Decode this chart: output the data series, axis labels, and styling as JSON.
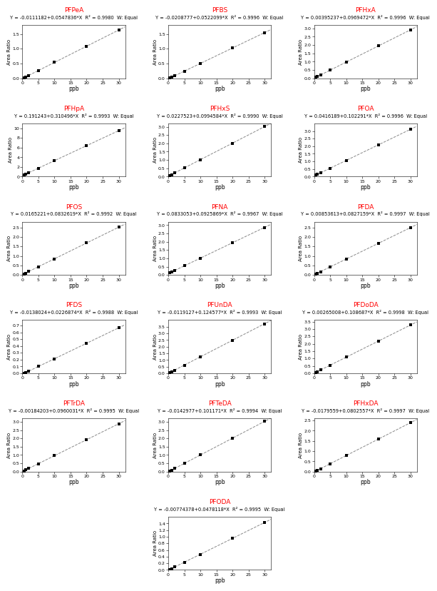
{
  "compounds": [
    {
      "name": "PFPeA",
      "eq_line": "Y = -0.0111182+0.0547836*X  R² = 0.9980  W: Equal",
      "intercept": -0.0111182,
      "slope": 0.0547836,
      "ymax": 1.8,
      "yticks": [
        0.0,
        0.5,
        1.0,
        1.5
      ]
    },
    {
      "name": "PFBS",
      "eq_line": "Y = -0.0208777+0.0522099*X  R² = 0.9996  W: Equal",
      "intercept": -0.0208777,
      "slope": 0.0522099,
      "ymax": 1.8,
      "yticks": [
        0.0,
        0.5,
        1.0,
        1.5
      ]
    },
    {
      "name": "PFHxA",
      "eq_line": "Y = 0.00395237+0.0969472*X  R² = 0.9996  W: Equal",
      "intercept": 0.00395237,
      "slope": 0.0969472,
      "ymax": 3.2,
      "yticks": [
        0.0,
        0.5,
        1.0,
        1.5,
        2.0,
        2.5,
        3.0
      ]
    },
    {
      "name": "PFHpA",
      "eq_line": "Y = 0.191243+0.310496*X  R² = 0.9993  W: Equal",
      "intercept": 0.191243,
      "slope": 0.310496,
      "ymax": 11.0,
      "yticks": [
        0,
        2,
        4,
        6,
        8,
        10
      ]
    },
    {
      "name": "PFHxS",
      "eq_line": "Y = 0.0227523+0.0994584*X  R² = 0.9990  W: Equal",
      "intercept": 0.0227523,
      "slope": 0.0994584,
      "ymax": 3.2,
      "yticks": [
        0.0,
        0.5,
        1.0,
        1.5,
        2.0,
        2.5,
        3.0
      ]
    },
    {
      "name": "PFOA",
      "eq_line": "Y = 0.0416189+0.102291*X  R² = 0.9996  W: Equal",
      "intercept": 0.0416189,
      "slope": 0.102291,
      "ymax": 3.5,
      "yticks": [
        0.0,
        0.5,
        1.0,
        1.5,
        2.0,
        2.5,
        3.0
      ]
    },
    {
      "name": "PFOS",
      "eq_line": "Y = 0.0165221+0.0832619*X  R² = 0.9992  W: Equal",
      "intercept": 0.0165221,
      "slope": 0.0832619,
      "ymax": 2.8,
      "yticks": [
        0.0,
        0.5,
        1.0,
        1.5,
        2.0,
        2.5
      ]
    },
    {
      "name": "PFNA",
      "eq_line": "Y = 0.0833053+0.0925869*X  R² = 0.9967  W: Equal",
      "intercept": 0.0833053,
      "slope": 0.0925869,
      "ymax": 3.2,
      "yticks": [
        0.0,
        0.5,
        1.0,
        1.5,
        2.0,
        2.5,
        3.0
      ]
    },
    {
      "name": "PFDA",
      "eq_line": "Y = 0.00853613+0.0827159*X  R² = 0.9997  W: Equal",
      "intercept": 0.00853613,
      "slope": 0.0827159,
      "ymax": 2.8,
      "yticks": [
        0.0,
        0.5,
        1.0,
        1.5,
        2.0,
        2.5
      ]
    },
    {
      "name": "PFDS",
      "eq_line": "Y = -0.0138024+0.0226874*X  R² = 0.9988  W: Equal",
      "intercept": -0.0138024,
      "slope": 0.0226874,
      "ymax": 0.78,
      "yticks": [
        0.0,
        0.1,
        0.2,
        0.3,
        0.4,
        0.5,
        0.6,
        0.7
      ]
    },
    {
      "name": "PFUnDA",
      "eq_line": "Y = -0.0119127+0.124577*X  R² = 0.9993  W: Equal",
      "intercept": -0.0119127,
      "slope": 0.124577,
      "ymax": 4.0,
      "yticks": [
        0.0,
        0.5,
        1.0,
        1.5,
        2.0,
        2.5,
        3.0,
        3.5
      ]
    },
    {
      "name": "PFDoDA",
      "eq_line": "Y = 0.00265008+0.108687*X  R² = 0.9998  W: Equal",
      "intercept": 0.00265008,
      "slope": 0.108687,
      "ymax": 3.6,
      "yticks": [
        0.0,
        0.5,
        1.0,
        1.5,
        2.0,
        2.5,
        3.0,
        3.5
      ]
    },
    {
      "name": "PFTrDA",
      "eq_line": "Y = -0.00184203+0.0960031*X  R² = 0.9995  W: Equal",
      "intercept": -0.00184203,
      "slope": 0.0960031,
      "ymax": 3.2,
      "yticks": [
        0.0,
        0.5,
        1.0,
        1.5,
        2.0,
        2.5,
        3.0
      ]
    },
    {
      "name": "PFTeDA",
      "eq_line": "Y = -0.0142977+0.101171*X  R² = 0.9994  W: Equal",
      "intercept": -0.0142977,
      "slope": 0.101171,
      "ymax": 3.2,
      "yticks": [
        0.0,
        0.5,
        1.0,
        1.5,
        2.0,
        2.5,
        3.0
      ]
    },
    {
      "name": "PFHxDA",
      "eq_line": "Y = -0.0179559+0.0802557*X  R² = 0.9997  W: Equal",
      "intercept": -0.0179559,
      "slope": 0.0802557,
      "ymax": 2.6,
      "yticks": [
        0.0,
        0.5,
        1.0,
        1.5,
        2.0,
        2.5
      ]
    },
    {
      "name": "PFODA",
      "eq_line": "Y = -0.00774378+0.0478118*X  R² = 0.9995  W: Equal",
      "intercept": -0.00774378,
      "slope": 0.0478118,
      "ymax": 1.6,
      "yticks": [
        0.0,
        0.2,
        0.4,
        0.6,
        0.8,
        1.0,
        1.2,
        1.4
      ]
    }
  ],
  "xdata": [
    0.5,
    1.0,
    2.0,
    5.0,
    10.0,
    20.0,
    30.0
  ],
  "xmax": 32,
  "xticks": [
    0,
    5,
    10,
    15,
    20,
    25,
    30
  ],
  "xlabel": "ppb",
  "ylabel": "Area Ratio",
  "name_color": "#ff0000",
  "eq_color": "#000000",
  "line_color": "#888888",
  "marker_color": "#000000",
  "bg_color": "#ffffff"
}
